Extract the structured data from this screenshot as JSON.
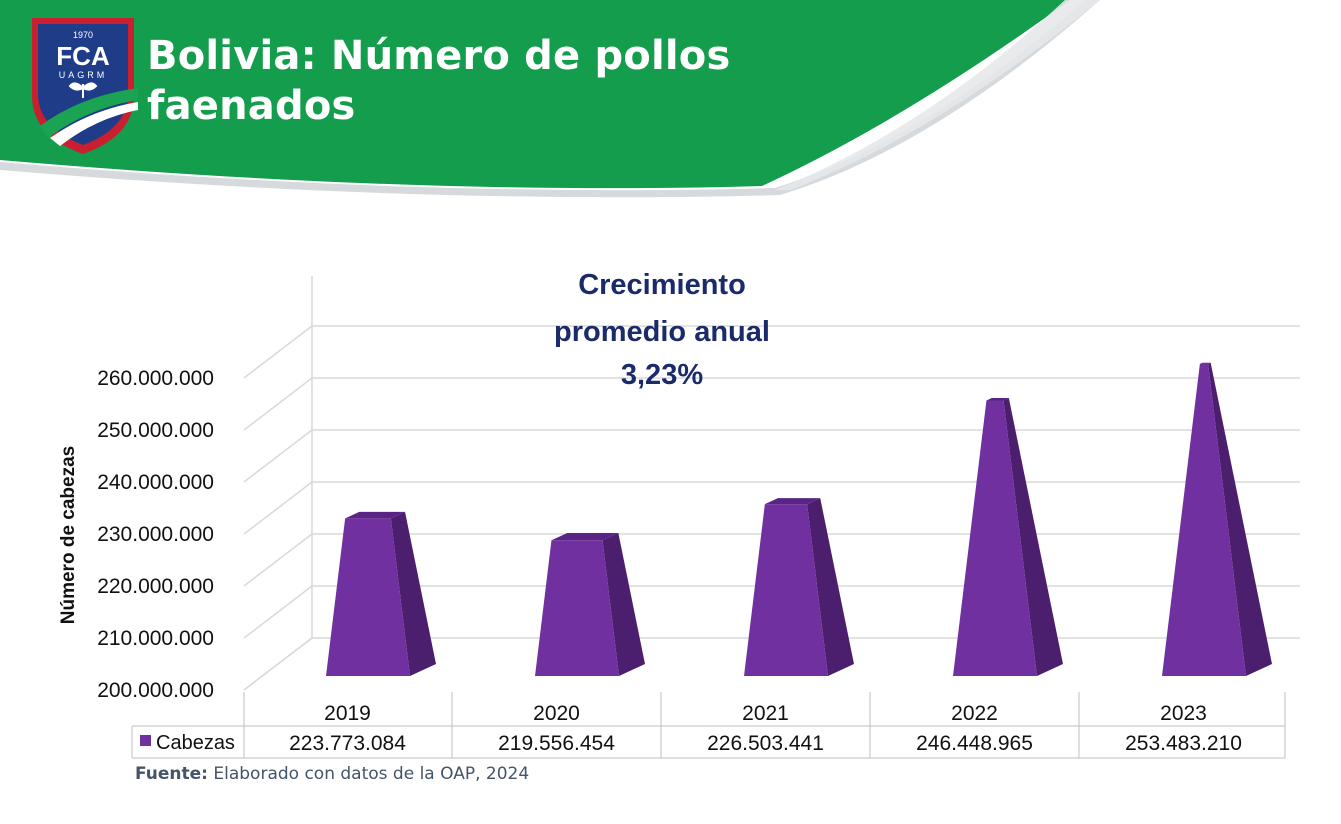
{
  "header": {
    "title_line1": "Bolivia: Número de pollos",
    "title_line2": "faenados",
    "logo": {
      "year": "1970",
      "acronym": "FCA",
      "institution": "UAGRM",
      "shield_color": "#c8202f",
      "inner_color": "#1f3c88"
    },
    "band_color": "#139d4c"
  },
  "chart_data": {
    "type": "bar",
    "style": "3d-pyramid",
    "annotation_lines": [
      "Crecimiento",
      "promedio anual",
      "3,23%"
    ],
    "annotation_color": "#1b2a6b",
    "ylabel": "Número de cabezas",
    "ylim": [
      200000000,
      260000000
    ],
    "yticks": [
      200000000,
      210000000,
      220000000,
      230000000,
      240000000,
      250000000,
      260000000
    ],
    "ytick_labels": [
      "200.000.000",
      "210.000.000",
      "220.000.000",
      "230.000.000",
      "240.000.000",
      "250.000.000",
      "260.000.000"
    ],
    "grid": true,
    "categories": [
      "2019",
      "2020",
      "2021",
      "2022",
      "2023"
    ],
    "series": [
      {
        "name": "Cabezas",
        "values": [
          223773084,
          219556454,
          226503441,
          246448965,
          253483210
        ],
        "value_labels": [
          "223.773.084",
          "219.556.454",
          "226.503.441",
          "246.448.965",
          "253.483.210"
        ],
        "color": "#7030a0"
      }
    ],
    "table_legend": true
  },
  "source": {
    "label": "Fuente:",
    "text": "Elaborado con datos de la OAP, 2024"
  }
}
